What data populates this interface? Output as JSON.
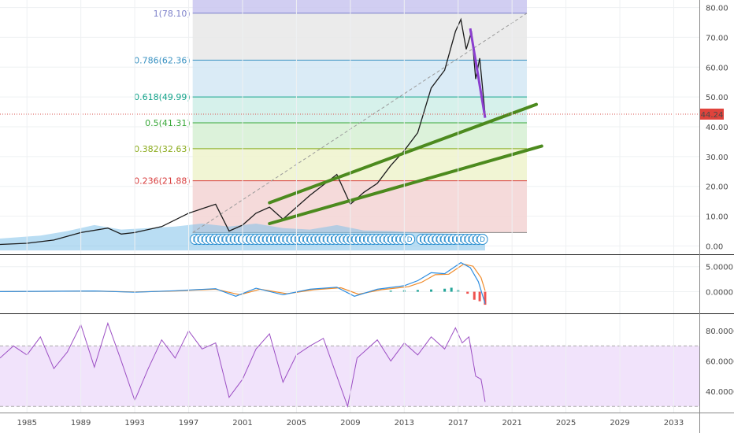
{
  "chart_data": {
    "type": "line",
    "title": "",
    "x_ticks": [
      "1985",
      "1989",
      "1993",
      "1997",
      "2001",
      "2005",
      "2009",
      "2013",
      "2017",
      "2021",
      "2025",
      "2029",
      "2033"
    ],
    "price_panel": {
      "y_ticks": [
        "80.00",
        "70.00",
        "60.00",
        "50.00",
        "40.00",
        "30.00",
        "20.00",
        "10.00",
        "0.00"
      ],
      "ylim": [
        -2,
        82
      ],
      "last_price": 44.24,
      "last_price_label": "44.24",
      "price_series": [
        [
          1983,
          0.5
        ],
        [
          1985,
          0.9
        ],
        [
          1987,
          2
        ],
        [
          1989,
          4.5
        ],
        [
          1991,
          6
        ],
        [
          1992,
          4
        ],
        [
          1993,
          4.5
        ],
        [
          1995,
          6.5
        ],
        [
          1997,
          11
        ],
        [
          1999,
          14
        ],
        [
          2000,
          5
        ],
        [
          2001,
          7
        ],
        [
          2002,
          11
        ],
        [
          2003,
          13
        ],
        [
          2004,
          9
        ],
        [
          2006,
          17
        ],
        [
          2008,
          24
        ],
        [
          2009,
          14
        ],
        [
          2010,
          18
        ],
        [
          2011,
          21
        ],
        [
          2012,
          27
        ],
        [
          2013,
          32
        ],
        [
          2014,
          38
        ],
        [
          2015,
          53
        ],
        [
          2016,
          59
        ],
        [
          2016.8,
          72
        ],
        [
          2017.2,
          76
        ],
        [
          2017.6,
          66
        ],
        [
          2018,
          72
        ],
        [
          2018.3,
          56
        ],
        [
          2018.6,
          63
        ],
        [
          2019,
          44
        ]
      ],
      "fibonacci": [
        {
          "label": "1(78.10)",
          "value": 78.1,
          "color": "#7b7fc9"
        },
        {
          "label": "0.786(62.36)",
          "value": 62.36,
          "color": "#3a92c2"
        },
        {
          "label": "0.618(49.99)",
          "value": 49.99,
          "color": "#13a38a"
        },
        {
          "label": "0.5(41.31)",
          "value": 41.31,
          "color": "#3aa83a"
        },
        {
          "label": "0.382(32.63)",
          "value": 32.63,
          "color": "#8aaa1a"
        },
        {
          "label": "0.236(21.88)",
          "value": 21.88,
          "color": "#d83d3d"
        }
      ],
      "fib_base": 4.5,
      "fib_x_range": [
        1997.3,
        2022.1
      ],
      "channel_upper": [
        [
          2003,
          14.5
        ],
        [
          2022.8,
          47.5
        ]
      ],
      "channel_lower": [
        [
          2003,
          7.5
        ],
        [
          2023.2,
          33.5
        ]
      ],
      "trend_dashed": [
        [
          1997.3,
          4.5
        ],
        [
          2022.1,
          78.1
        ]
      ],
      "drop_line": [
        [
          2017.9,
          73
        ],
        [
          2019,
          43
        ]
      ],
      "dividend_marker_label": "D",
      "dividend_markers": [
        1997.5,
        1997.8,
        1998.1,
        1998.4,
        1998.7,
        1999,
        1999.3,
        1999.6,
        1999.9,
        2000.2,
        2000.5,
        2000.8,
        2001.1,
        2001.4,
        2001.7,
        2002,
        2002.3,
        2002.6,
        2002.9,
        2003.2,
        2003.5,
        2003.8,
        2004.1,
        2004.4,
        2004.7,
        2005,
        2005.3,
        2005.6,
        2005.9,
        2006.2,
        2006.5,
        2006.8,
        2007.1,
        2007.4,
        2007.7,
        2008,
        2008.3,
        2008.6,
        2008.9,
        2009.2,
        2009.5,
        2009.8,
        2010.1,
        2010.4,
        2010.7,
        2011,
        2011.3,
        2011.6,
        2011.9,
        2012.2,
        2012.5,
        2012.8,
        2013.1,
        2013.4,
        2014.3,
        2014.6,
        2014.9,
        2015.2,
        2015.5,
        2015.8,
        2016.1,
        2016.4,
        2016.7,
        2017,
        2017.3,
        2017.6,
        2017.9,
        2018.2,
        2018.5,
        2018.8
      ]
    },
    "macd_panel": {
      "y_ticks": [
        "5.0000",
        "0.0000"
      ],
      "ylim": [
        -4,
        7
      ],
      "macd": [
        [
          1983,
          0.02
        ],
        [
          1990,
          0.15
        ],
        [
          1993,
          -0.1
        ],
        [
          1996,
          0.2
        ],
        [
          1999,
          0.6
        ],
        [
          2000.5,
          -0.9
        ],
        [
          2002,
          0.7
        ],
        [
          2004,
          -0.6
        ],
        [
          2006,
          0.5
        ],
        [
          2008,
          0.9
        ],
        [
          2009.3,
          -0.9
        ],
        [
          2011,
          0.5
        ],
        [
          2013,
          1.2
        ],
        [
          2014,
          2.2
        ],
        [
          2015,
          3.8
        ],
        [
          2016,
          3.6
        ],
        [
          2017.2,
          5.8
        ],
        [
          2017.9,
          4.8
        ],
        [
          2018.5,
          2.0
        ],
        [
          2019,
          -2.4
        ]
      ],
      "signal": [
        [
          1983,
          0.02
        ],
        [
          1990,
          0.13
        ],
        [
          1993,
          -0.05
        ],
        [
          1996,
          0.15
        ],
        [
          1999,
          0.5
        ],
        [
          2000.8,
          -0.6
        ],
        [
          2002.3,
          0.5
        ],
        [
          2004.3,
          -0.4
        ],
        [
          2006.3,
          0.4
        ],
        [
          2008.3,
          0.8
        ],
        [
          2009.6,
          -0.5
        ],
        [
          2011.3,
          0.4
        ],
        [
          2013.3,
          1.0
        ],
        [
          2014.3,
          1.9
        ],
        [
          2015.3,
          3.4
        ],
        [
          2016.3,
          3.5
        ],
        [
          2017.4,
          5.5
        ],
        [
          2018.1,
          5.1
        ],
        [
          2018.7,
          2.8
        ],
        [
          2019,
          0.2
        ]
      ],
      "histogram": [
        [
          2012,
          0.2
        ],
        [
          2013,
          0.3
        ],
        [
          2014,
          0.35
        ],
        [
          2015,
          0.45
        ],
        [
          2016,
          0.6
        ],
        [
          2016.5,
          0.8
        ],
        [
          2017,
          0.35
        ],
        [
          2017.7,
          -0.4
        ],
        [
          2018.2,
          -1.6
        ],
        [
          2018.6,
          -1.9
        ],
        [
          2019,
          -2.6
        ]
      ]
    },
    "rsi_panel": {
      "y_ticks": [
        "80.0000",
        "60.0000",
        "40.0000"
      ],
      "ylim": [
        27,
        90
      ],
      "band": [
        30,
        70
      ],
      "rsi": [
        [
          1983,
          62
        ],
        [
          1984,
          70
        ],
        [
          1985,
          64
        ],
        [
          1986,
          76
        ],
        [
          1987,
          55
        ],
        [
          1988,
          66
        ],
        [
          1989,
          84
        ],
        [
          1990,
          56
        ],
        [
          1991,
          85
        ],
        [
          1992,
          60
        ],
        [
          1993,
          34
        ],
        [
          1994,
          55
        ],
        [
          1995,
          74
        ],
        [
          1996,
          62
        ],
        [
          1997,
          80
        ],
        [
          1998,
          68
        ],
        [
          1999,
          72
        ],
        [
          2000,
          36
        ],
        [
          2001,
          48
        ],
        [
          2002,
          68
        ],
        [
          2003,
          78
        ],
        [
          2004,
          46
        ],
        [
          2005,
          64
        ],
        [
          2006,
          70
        ],
        [
          2007,
          75
        ],
        [
          2008,
          50
        ],
        [
          2008.8,
          30
        ],
        [
          2009.5,
          62
        ],
        [
          2010,
          66
        ],
        [
          2011,
          74
        ],
        [
          2012,
          60
        ],
        [
          2013,
          72
        ],
        [
          2014,
          64
        ],
        [
          2015,
          76
        ],
        [
          2016,
          68
        ],
        [
          2016.8,
          82
        ],
        [
          2017.3,
          72
        ],
        [
          2017.8,
          76
        ],
        [
          2018.3,
          50
        ],
        [
          2018.7,
          48
        ],
        [
          2019,
          33
        ]
      ]
    }
  }
}
